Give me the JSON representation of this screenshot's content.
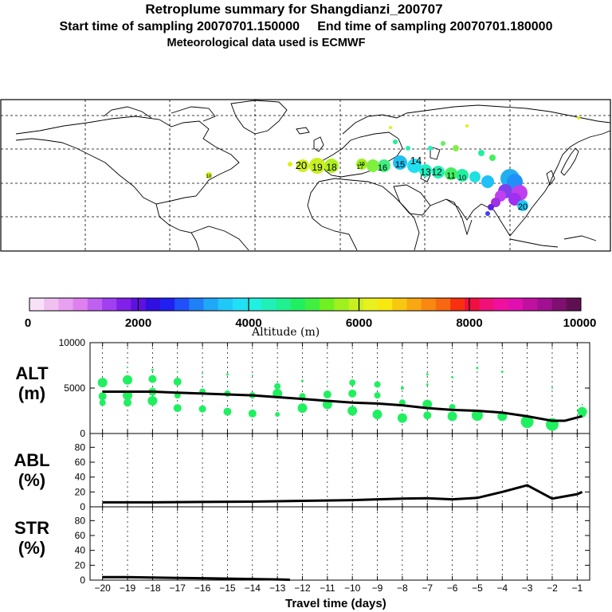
{
  "header": {
    "title": "Retroplume summary for Shangdianzi_200707",
    "sampling": "Start time of sampling 20070701.150000     End time of sampling 20070701.180000",
    "met": "Meteorological data used is ECMWF"
  },
  "colorbar": {
    "label": "Altitude  (m)",
    "ticks": [
      "0",
      "2000",
      "4000",
      "6000",
      "8000",
      "10000"
    ],
    "colors": [
      "#f8e0f8",
      "#f0c0f0",
      "#e8a0f0",
      "#e080f0",
      "#c060f0",
      "#a040f0",
      "#8020e8",
      "#6010e0",
      "#3010e0",
      "#2020f0",
      "#2050f8",
      "#2080f8",
      "#20a8f8",
      "#20c8f8",
      "#20e0f8",
      "#20f0e0",
      "#20f0b8",
      "#20f090",
      "#20f060",
      "#40f040",
      "#70f020",
      "#a0f020",
      "#c8f020",
      "#e8f020",
      "#f8e810",
      "#f8c810",
      "#f8a810",
      "#f88810",
      "#f86810",
      "#f83010",
      "#f01040",
      "#f01078",
      "#f010a0",
      "#e010b0",
      "#c010a0",
      "#a01090",
      "#801070",
      "#601050"
    ]
  },
  "map": {
    "plume_labels": [
      "20",
      "19",
      "18",
      "17",
      "16",
      "15",
      "14",
      "13",
      "12",
      "11",
      "10"
    ]
  },
  "chart_data": [
    {
      "type": "scatter+line",
      "panel": "ALT",
      "ylabel": "ALT\n(m)",
      "ylabel_lines": [
        "ALT",
        "(m)"
      ],
      "ylim": [
        0,
        10000
      ],
      "yticks": [
        "0",
        "5000",
        "10000"
      ],
      "line_x": [
        -20,
        -19,
        -18,
        -17,
        -16,
        -15,
        -14,
        -13,
        -12,
        -11,
        -10,
        -9,
        -8,
        -7,
        -6,
        -5,
        -4,
        -3,
        -2,
        -1.5,
        -0.8
      ],
      "line_y": [
        4600,
        4600,
        4600,
        4500,
        4400,
        4300,
        4200,
        4000,
        3800,
        3600,
        3400,
        3300,
        3100,
        2800,
        2600,
        2500,
        2300,
        1900,
        1400,
        1400,
        1900
      ],
      "points": [
        [
          -20,
          5600,
          6
        ],
        [
          -20,
          4100,
          5
        ],
        [
          -20,
          3400,
          4
        ],
        [
          -19,
          5900,
          6
        ],
        [
          -19,
          4200,
          6
        ],
        [
          -19,
          3400,
          5
        ],
        [
          -19,
          7300,
          1
        ],
        [
          -18,
          6000,
          5
        ],
        [
          -18,
          4600,
          5
        ],
        [
          -18,
          3600,
          6
        ],
        [
          -18,
          7000,
          1.5
        ],
        [
          -17,
          5700,
          5
        ],
        [
          -17,
          4200,
          4
        ],
        [
          -17,
          2800,
          5
        ],
        [
          -17,
          6800,
          1
        ],
        [
          -16,
          4600,
          4
        ],
        [
          -16,
          2700,
          4.5
        ],
        [
          -16,
          6600,
          1
        ],
        [
          -15,
          4400,
          4
        ],
        [
          -15,
          2400,
          5
        ],
        [
          -15,
          6500,
          1.5
        ],
        [
          -14,
          4200,
          4
        ],
        [
          -14,
          2200,
          5
        ],
        [
          -14,
          6400,
          1
        ],
        [
          -13,
          5200,
          4
        ],
        [
          -13,
          4400,
          6
        ],
        [
          -13,
          2100,
          3
        ],
        [
          -12,
          4100,
          4
        ],
        [
          -12,
          2800,
          6
        ],
        [
          -12,
          5800,
          1.5
        ],
        [
          -11,
          4300,
          5
        ],
        [
          -11,
          3200,
          6
        ],
        [
          -11,
          5700,
          1
        ],
        [
          -10,
          5600,
          4
        ],
        [
          -10,
          4400,
          5
        ],
        [
          -10,
          2500,
          6
        ],
        [
          -9,
          5400,
          4
        ],
        [
          -9,
          4200,
          4
        ],
        [
          -9,
          2100,
          6
        ],
        [
          -8,
          5000,
          2
        ],
        [
          -8,
          3400,
          4
        ],
        [
          -8,
          1700,
          6
        ],
        [
          -7,
          6500,
          1.5
        ],
        [
          -7,
          5400,
          1.5
        ],
        [
          -7,
          3200,
          6
        ],
        [
          -7,
          2000,
          5
        ],
        [
          -6,
          6200,
          1.5
        ],
        [
          -6,
          2900,
          4
        ],
        [
          -6,
          1900,
          6
        ],
        [
          -5,
          7200,
          1.5
        ],
        [
          -5,
          2000,
          7
        ],
        [
          -4,
          6800,
          1.5
        ],
        [
          -4,
          1900,
          6
        ],
        [
          -3,
          1300,
          8
        ],
        [
          -2,
          5000,
          1
        ],
        [
          -2,
          1000,
          8
        ],
        [
          -0.8,
          2400,
          6
        ],
        [
          -0.8,
          2200,
          5
        ],
        [
          -0.8,
          3200,
          1
        ]
      ]
    },
    {
      "type": "line",
      "panel": "ABL",
      "ylabel": "ABL\n(%)",
      "ylabel_lines": [
        "ABL",
        "(%)"
      ],
      "ylim": [
        0,
        90
      ],
      "yticks": [
        "0",
        "20",
        "40",
        "60",
        "80"
      ],
      "x": [
        -20,
        -18,
        -16,
        -14,
        -12,
        -10,
        -9,
        -8,
        -7,
        -6,
        -5,
        -4,
        -3,
        -2,
        -1,
        -0.8
      ],
      "y": [
        6,
        6,
        6.5,
        7,
        8,
        9,
        10,
        11,
        11.5,
        10,
        12,
        20,
        29,
        11,
        17,
        20
      ]
    },
    {
      "type": "line",
      "panel": "STR",
      "ylabel": "STR\n(%)",
      "ylabel_lines": [
        "STR",
        "(%)"
      ],
      "ylim": [
        0,
        90
      ],
      "yticks": [
        "0",
        "20",
        "40",
        "60",
        "80"
      ],
      "x": [
        -20,
        -19,
        -18,
        -17,
        -16,
        -15,
        -14,
        -13,
        -12.5
      ],
      "y": [
        4,
        4,
        3.5,
        3,
        2.5,
        2,
        1.5,
        1,
        0.5
      ]
    }
  ],
  "xaxis": {
    "title": "Travel time (days)",
    "ticks": [
      "-20",
      "-19",
      "-18",
      "-17",
      "-16",
      "-15",
      "-14",
      "-13",
      "-12",
      "-11",
      "-10",
      "-9",
      "-8",
      "-7",
      "-6",
      "-5",
      "-4",
      "-3",
      "-2",
      "-1"
    ]
  }
}
